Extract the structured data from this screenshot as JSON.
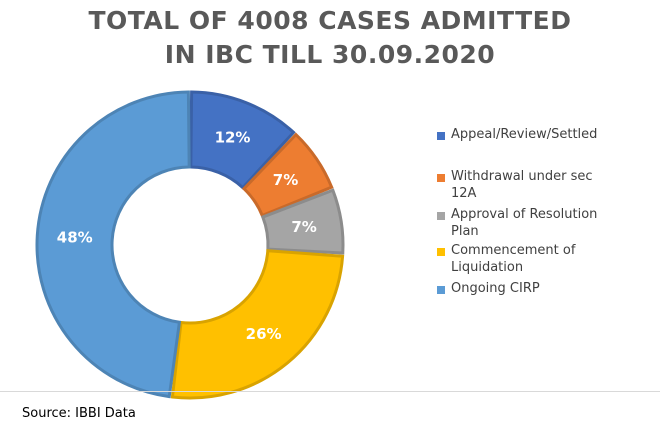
{
  "title_line1": "TOTAL OF 4008 CASES ADMITTED",
  "title_line2": "IN IBC TILL 30.09.2020",
  "source": "Source: IBBI Data",
  "chart_data": {
    "type": "pie",
    "title": "TOTAL OF 4008 CASES ADMITTED IN IBC TILL 30.09.2020",
    "donut": true,
    "legend_position": "right",
    "series": [
      {
        "name": "Appeal/Review/Settled",
        "value": 12,
        "label": "12%",
        "color": "#4472C4"
      },
      {
        "name": "Withdrawal under sec 12A",
        "value": 7,
        "label": "7%",
        "color": "#ED7D31"
      },
      {
        "name": "Approval of Resolution Plan",
        "value": 7,
        "label": "7%",
        "color": "#A5A5A5"
      },
      {
        "name": "Commencement of Liquidation",
        "value": 26,
        "label": "26%",
        "color": "#FFC000"
      },
      {
        "name": "Ongoing CIRP",
        "value": 48,
        "label": "48%",
        "color": "#5B9BD5"
      }
    ],
    "legend_lines": [
      [
        "Appeal/Review/Settled"
      ],
      [
        "Withdrawal under sec",
        "12A"
      ],
      [
        "Approval of Resolution",
        "Plan"
      ],
      [
        "Commencement of",
        "Liquidation"
      ],
      [
        "Ongoing CIRP"
      ]
    ]
  }
}
